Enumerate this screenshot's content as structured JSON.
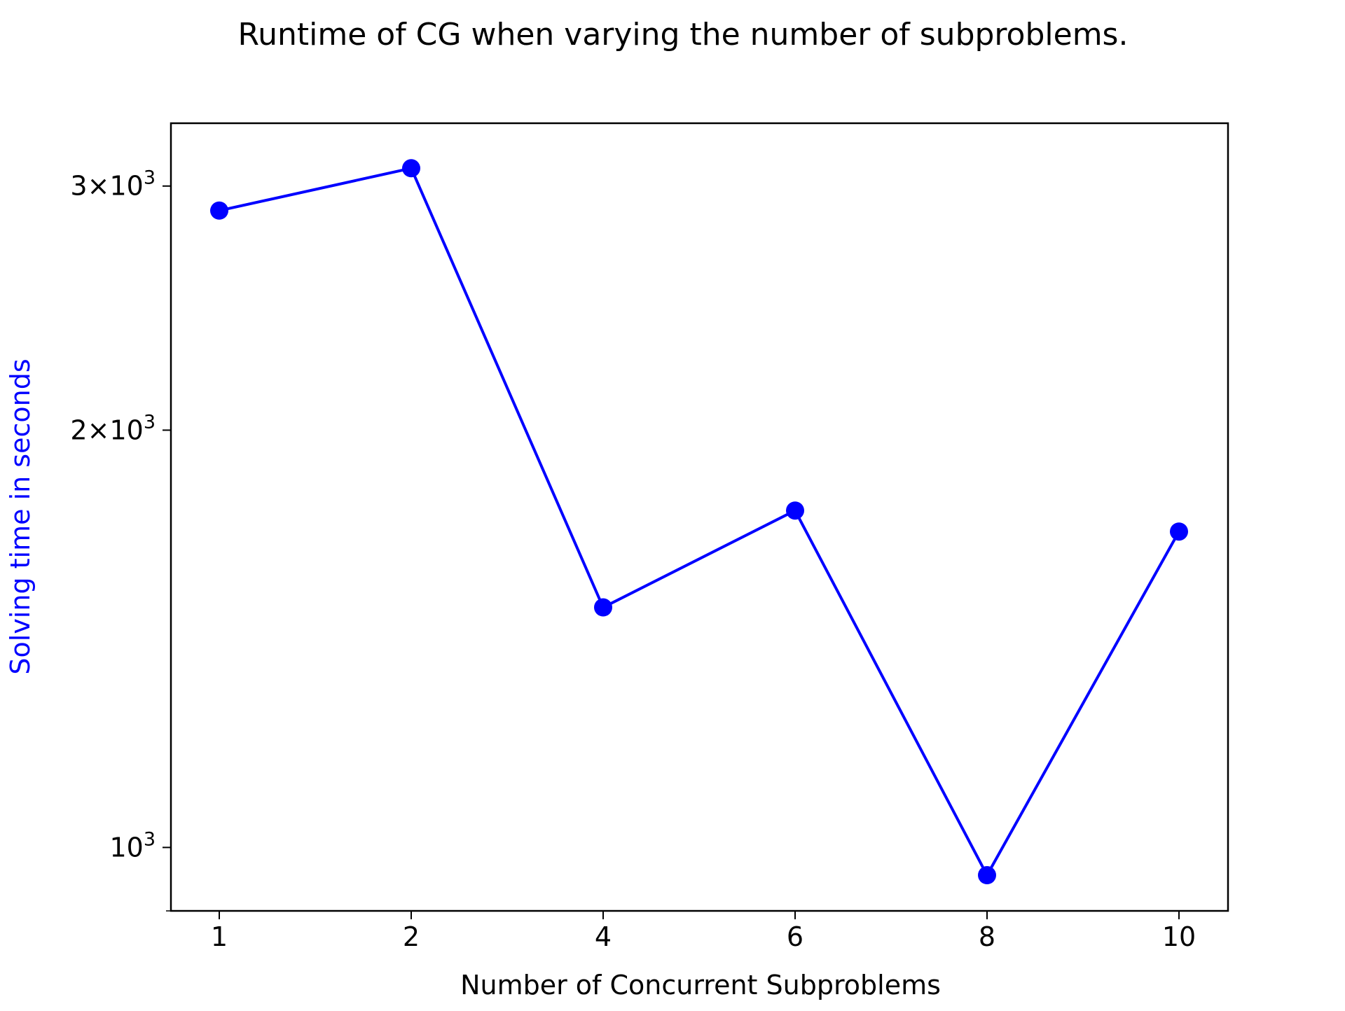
{
  "chart_data": {
    "type": "line",
    "title": "Runtime of CG when varying the number of subproblems.",
    "xlabel": "Number of Concurrent Subproblems",
    "ylabel": "Solving time in seconds",
    "yscale": "log",
    "categories": [
      "1",
      "2",
      "4",
      "6",
      "8",
      "10"
    ],
    "series": [
      {
        "values": [
          2880,
          3090,
          1490,
          1750,
          955,
          1690
        ],
        "color": "#0000ff",
        "marker": "circle"
      }
    ],
    "y_ticks": [
      {
        "value": 1000,
        "base": "10",
        "exp": "3",
        "coef": ""
      },
      {
        "value": 2000,
        "base": "10",
        "exp": "3",
        "coef": "2"
      },
      {
        "value": 3000,
        "base": "10",
        "exp": "3",
        "coef": "3"
      }
    ],
    "ylim": [
      900,
      3330
    ],
    "grid": false,
    "legend": "none",
    "colors": {
      "series": "#0000ff",
      "ylabel": "#0000ff",
      "axis": "#000000"
    }
  }
}
